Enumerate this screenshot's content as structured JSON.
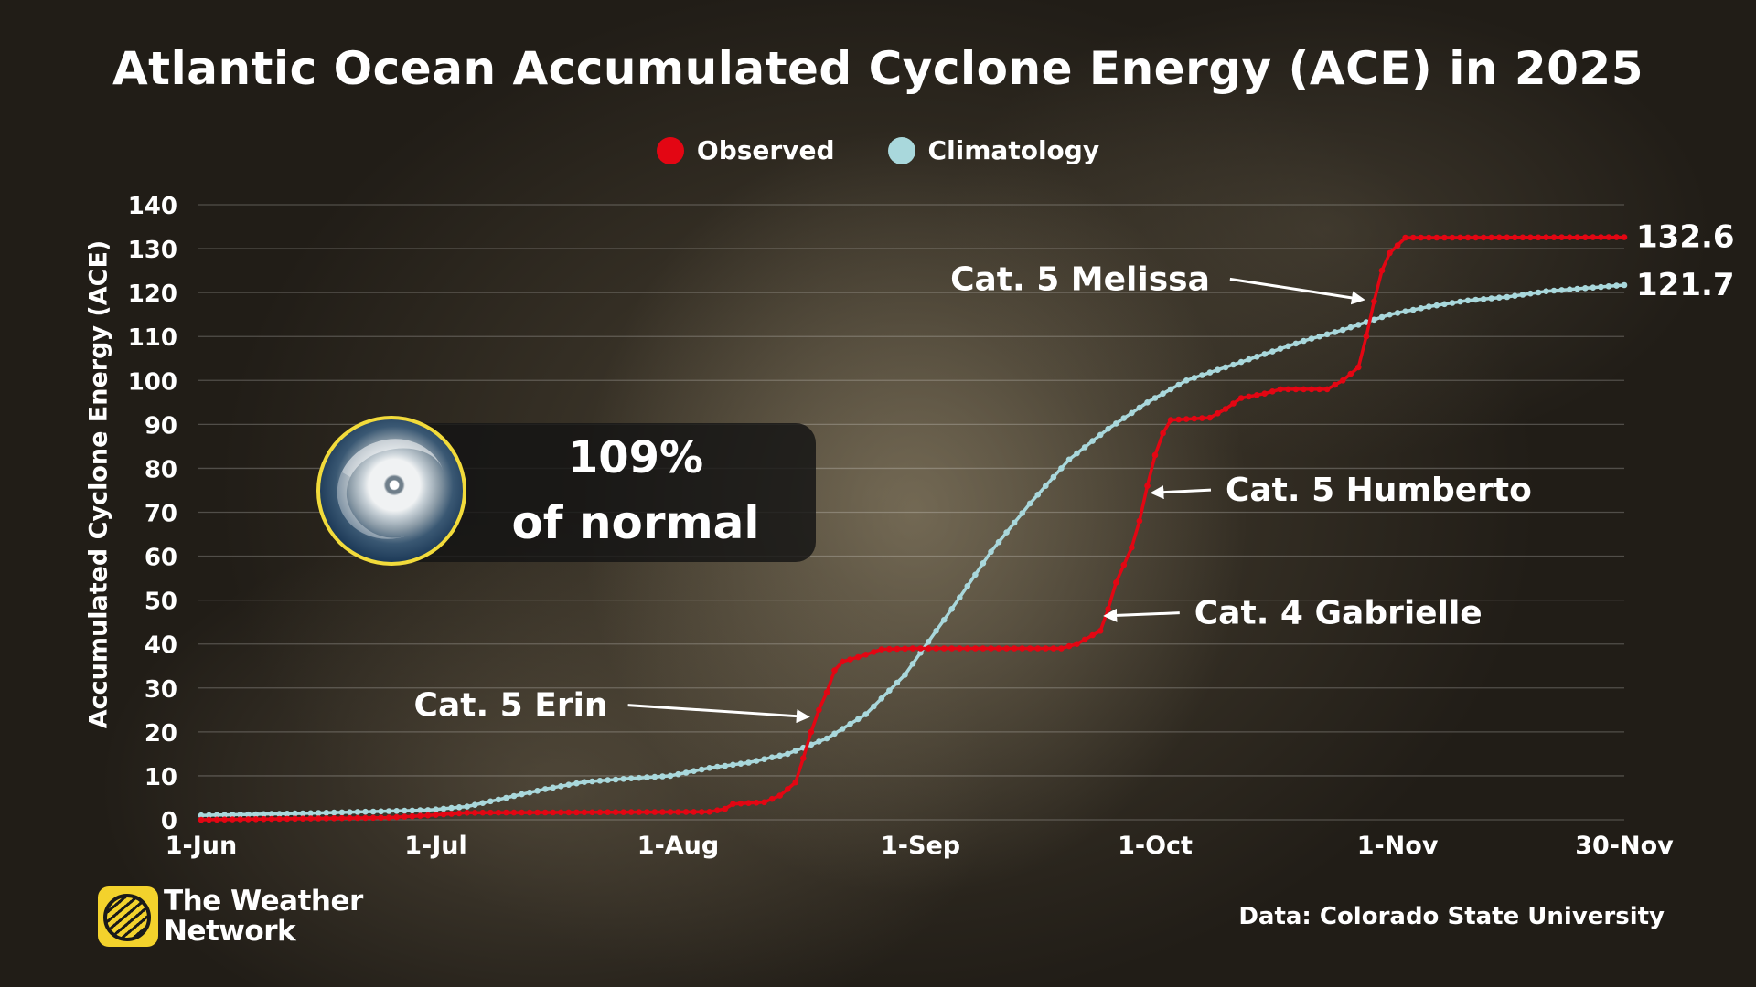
{
  "title": "Atlantic Ocean Accumulated Cyclone Energy (ACE) in 2025",
  "legend": {
    "observed": "Observed",
    "climatology": "Climatology"
  },
  "badge": {
    "percent": "109%",
    "subtitle": "of normal",
    "image_icon": "hurricane-satellite-icon"
  },
  "brand": {
    "name_line1": "The Weather",
    "name_line2": "Network",
    "logo_icon": "weather-network-globe-icon"
  },
  "source": "Data: Colorado State University",
  "colors": {
    "observed": "#e30613",
    "climatology": "#a9d8dc",
    "badge_ring": "#f2db3b",
    "brand_logo": "#f3d22c"
  },
  "chart_data": {
    "type": "line",
    "title": "Atlantic Ocean Accumulated Cyclone Energy (ACE) in 2025",
    "xlabel": "",
    "ylabel": "Accumulated Cyclone Energy (ACE)",
    "ylim": [
      0,
      140
    ],
    "yticks": [
      0,
      10,
      20,
      30,
      40,
      50,
      60,
      70,
      80,
      90,
      100,
      110,
      120,
      130,
      140
    ],
    "xlim": [
      "2025-06-01",
      "2025-11-30"
    ],
    "xticks": [
      {
        "date": "2025-06-01",
        "label": "1-Jun"
      },
      {
        "date": "2025-07-01",
        "label": "1-Jul"
      },
      {
        "date": "2025-08-01",
        "label": "1-Aug"
      },
      {
        "date": "2025-09-01",
        "label": "1-Sep"
      },
      {
        "date": "2025-10-01",
        "label": "1-Oct"
      },
      {
        "date": "2025-11-01",
        "label": "1-Nov"
      },
      {
        "date": "2025-11-30",
        "label": "30-Nov"
      }
    ],
    "grid": true,
    "legend_position": "top-center",
    "series": [
      {
        "name": "Observed",
        "color": "#e30613",
        "points": [
          [
            "2025-06-01",
            0
          ],
          [
            "2025-06-15",
            0.3
          ],
          [
            "2025-06-25",
            0.5
          ],
          [
            "2025-06-30",
            1.0
          ],
          [
            "2025-07-05",
            1.6
          ],
          [
            "2025-07-20",
            1.7
          ],
          [
            "2025-08-05",
            1.8
          ],
          [
            "2025-08-07",
            2.5
          ],
          [
            "2025-08-08",
            3.6
          ],
          [
            "2025-08-12",
            4.0
          ],
          [
            "2025-08-14",
            5.5
          ],
          [
            "2025-08-16",
            8.5
          ],
          [
            "2025-08-17",
            14.0
          ],
          [
            "2025-08-18",
            20.0
          ],
          [
            "2025-08-19",
            25.0
          ],
          [
            "2025-08-20",
            29.0
          ],
          [
            "2025-08-21",
            34.0
          ],
          [
            "2025-08-22",
            36.0
          ],
          [
            "2025-08-24",
            37.0
          ],
          [
            "2025-08-27",
            38.8
          ],
          [
            "2025-08-31",
            39.0
          ],
          [
            "2025-09-19",
            39.0
          ],
          [
            "2025-09-21",
            40.0
          ],
          [
            "2025-09-24",
            43.0
          ],
          [
            "2025-09-25",
            48.0
          ],
          [
            "2025-09-26",
            54.0
          ],
          [
            "2025-09-27",
            58.0
          ],
          [
            "2025-09-28",
            62.0
          ],
          [
            "2025-09-29",
            68.0
          ],
          [
            "2025-09-30",
            76.0
          ],
          [
            "2025-10-01",
            83.0
          ],
          [
            "2025-10-02",
            88.0
          ],
          [
            "2025-10-03",
            91.0
          ],
          [
            "2025-10-08",
            91.5
          ],
          [
            "2025-10-10",
            93.5
          ],
          [
            "2025-10-12",
            96.0
          ],
          [
            "2025-10-15",
            97.0
          ],
          [
            "2025-10-17",
            98.0
          ],
          [
            "2025-10-23",
            98.0
          ],
          [
            "2025-10-25",
            100.0
          ],
          [
            "2025-10-27",
            103.0
          ],
          [
            "2025-10-28",
            110.0
          ],
          [
            "2025-10-29",
            118.0
          ],
          [
            "2025-10-30",
            125.0
          ],
          [
            "2025-10-31",
            129.0
          ],
          [
            "2025-11-02",
            132.5
          ],
          [
            "2025-11-30",
            132.6
          ]
        ]
      },
      {
        "name": "Climatology",
        "color": "#a9d8dc",
        "points": [
          [
            "2025-06-01",
            1.0
          ],
          [
            "2025-06-15",
            1.5
          ],
          [
            "2025-06-30",
            2.2
          ],
          [
            "2025-07-05",
            3.0
          ],
          [
            "2025-07-10",
            5.0
          ],
          [
            "2025-07-15",
            7.0
          ],
          [
            "2025-07-20",
            8.6
          ],
          [
            "2025-07-25",
            9.3
          ],
          [
            "2025-07-31",
            10.0
          ],
          [
            "2025-08-05",
            11.8
          ],
          [
            "2025-08-10",
            13.0
          ],
          [
            "2025-08-15",
            15.0
          ],
          [
            "2025-08-20",
            18.5
          ],
          [
            "2025-08-25",
            24.0
          ],
          [
            "2025-08-30",
            33.0
          ],
          [
            "2025-09-01",
            38.0
          ],
          [
            "2025-09-05",
            48.0
          ],
          [
            "2025-09-10",
            61.0
          ],
          [
            "2025-09-15",
            72.0
          ],
          [
            "2025-09-20",
            82.0
          ],
          [
            "2025-09-25",
            89.0
          ],
          [
            "2025-09-30",
            95.0
          ],
          [
            "2025-10-05",
            100.0
          ],
          [
            "2025-10-10",
            103.0
          ],
          [
            "2025-10-15",
            106.0
          ],
          [
            "2025-10-20",
            109.0
          ],
          [
            "2025-10-25",
            111.5
          ],
          [
            "2025-10-31",
            115.0
          ],
          [
            "2025-11-05",
            116.8
          ],
          [
            "2025-11-10",
            118.2
          ],
          [
            "2025-11-15",
            119.0
          ],
          [
            "2025-11-20",
            120.3
          ],
          [
            "2025-11-25",
            121.0
          ],
          [
            "2025-11-30",
            121.7
          ]
        ]
      }
    ],
    "end_labels": [
      {
        "series": "Observed",
        "text": "132.6",
        "value": 132.6
      },
      {
        "series": "Climatology",
        "text": "121.7",
        "value": 121.7
      }
    ],
    "annotations": [
      {
        "text": "Cat. 5 Erin",
        "target": [
          "2025-08-18",
          23
        ],
        "side": "left",
        "text_at": [
          "2025-07-23",
          24
        ]
      },
      {
        "text": "Cat. 4 Gabrielle",
        "target": [
          "2025-09-24",
          46
        ],
        "side": "right",
        "text_at": [
          "2025-10-06",
          45
        ]
      },
      {
        "text": "Cat. 5 Humberto",
        "target": [
          "2025-09-30",
          74
        ],
        "side": "right",
        "text_at": [
          "2025-10-10",
          73
        ]
      },
      {
        "text": "Cat. 5 Melissa",
        "target": [
          "2025-10-28",
          118
        ],
        "side": "left",
        "text_at": [
          "2025-10-08",
          121
        ]
      }
    ]
  }
}
